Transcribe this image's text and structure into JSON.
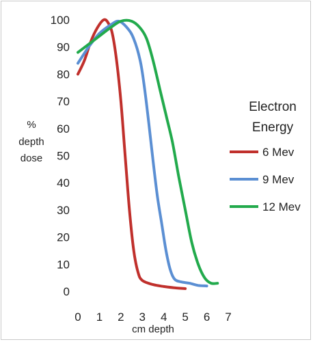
{
  "chart_data": {
    "type": "line",
    "xlabel": "cm depth",
    "ylabel_lines": [
      "%",
      "depth",
      "dose"
    ],
    "xlim": [
      0,
      7
    ],
    "ylim": [
      0,
      100
    ],
    "x_ticks": [
      "0",
      "1",
      "2",
      "3",
      "4",
      "5",
      "6",
      "7"
    ],
    "y_ticks": [
      "0",
      "10",
      "20",
      "30",
      "40",
      "50",
      "60",
      "70",
      "80",
      "90",
      "100"
    ],
    "grid": false,
    "legend_title_lines": [
      "Electron",
      "Energy"
    ],
    "legend_position": "right",
    "series": [
      {
        "name": "6 Mev",
        "color": "#c0302c",
        "points": [
          [
            0,
            80
          ],
          [
            0.3,
            85
          ],
          [
            0.6,
            92
          ],
          [
            0.9,
            97
          ],
          [
            1.2,
            100
          ],
          [
            1.4,
            99
          ],
          [
            1.6,
            95
          ],
          [
            1.8,
            85
          ],
          [
            2.0,
            70
          ],
          [
            2.2,
            50
          ],
          [
            2.4,
            30
          ],
          [
            2.6,
            15
          ],
          [
            2.8,
            7
          ],
          [
            3.0,
            4
          ],
          [
            3.5,
            2.5
          ],
          [
            4.0,
            1.8
          ],
          [
            4.5,
            1.3
          ],
          [
            5.0,
            1
          ]
        ]
      },
      {
        "name": "9 Mev",
        "color": "#5b8fd3",
        "points": [
          [
            0,
            84
          ],
          [
            0.5,
            90
          ],
          [
            1.0,
            95
          ],
          [
            1.5,
            98
          ],
          [
            1.9,
            99.5
          ],
          [
            2.3,
            97
          ],
          [
            2.6,
            93
          ],
          [
            2.9,
            85
          ],
          [
            3.1,
            75
          ],
          [
            3.3,
            62
          ],
          [
            3.5,
            48
          ],
          [
            3.7,
            35
          ],
          [
            3.9,
            25
          ],
          [
            4.1,
            15
          ],
          [
            4.3,
            8
          ],
          [
            4.5,
            4.5
          ],
          [
            4.8,
            3.5
          ],
          [
            5.2,
            3
          ],
          [
            5.6,
            2.2
          ],
          [
            6.0,
            2
          ]
        ]
      },
      {
        "name": "12 Mev",
        "color": "#22aa4c",
        "points": [
          [
            0,
            88
          ],
          [
            0.5,
            91
          ],
          [
            1.0,
            94
          ],
          [
            1.5,
            97
          ],
          [
            2.0,
            99.5
          ],
          [
            2.5,
            99.5
          ],
          [
            2.9,
            97
          ],
          [
            3.2,
            93
          ],
          [
            3.5,
            85
          ],
          [
            3.8,
            75
          ],
          [
            4.1,
            65
          ],
          [
            4.4,
            55
          ],
          [
            4.7,
            42
          ],
          [
            5.0,
            30
          ],
          [
            5.3,
            18
          ],
          [
            5.6,
            10
          ],
          [
            5.9,
            5
          ],
          [
            6.2,
            3
          ],
          [
            6.5,
            3
          ]
        ]
      }
    ]
  }
}
